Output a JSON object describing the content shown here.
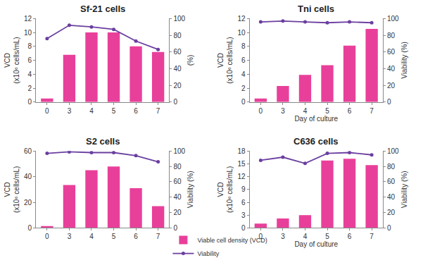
{
  "chart_data": [
    {
      "type": "bar",
      "title": "Sf-21 cells",
      "categories": [
        "0",
        "3",
        "4",
        "5",
        "6",
        "7"
      ],
      "y_label": "VCD\n(x10⁶ cells/mL)",
      "y2_label": "(%)",
      "ylim": [
        0,
        12
      ],
      "yticks": [
        0,
        2,
        4,
        6,
        8,
        10,
        12
      ],
      "y2lim": [
        0,
        100
      ],
      "y2ticks": [
        0,
        20,
        40,
        60,
        80,
        100
      ],
      "grid": false,
      "legend": "bottom",
      "series": [
        {
          "name": "Viable cell density (VCD)",
          "type": "bar",
          "color": "#e8409a",
          "values": [
            0.5,
            6.8,
            10,
            10,
            8,
            7.2
          ]
        },
        {
          "name": "Viability",
          "type": "line",
          "axis": "y2",
          "color": "#6b3fa0",
          "marker": "circle",
          "values": [
            76,
            92,
            90,
            87,
            73,
            63
          ]
        }
      ]
    },
    {
      "type": "bar",
      "title": "Tni cells",
      "categories": [
        "0",
        "3",
        "4",
        "5",
        "6",
        "7"
      ],
      "x_label": "Day of culture",
      "y_label": "VCD\n(x10⁶ cells/mL)",
      "y2_label": "Viability (%)",
      "ylim": [
        0,
        12
      ],
      "yticks": [
        0,
        2,
        4,
        6,
        8,
        10,
        12
      ],
      "y2lim": [
        0,
        100
      ],
      "y2ticks": [
        0,
        20,
        40,
        60,
        80,
        100
      ],
      "grid": false,
      "series": [
        {
          "name": "Viable cell density (VCD)",
          "type": "bar",
          "color": "#e8409a",
          "values": [
            0.5,
            2.3,
            3.9,
            5.3,
            8.1,
            10.5
          ]
        },
        {
          "name": "Viability",
          "type": "line",
          "axis": "y2",
          "color": "#6b3fa0",
          "marker": "circle",
          "values": [
            96,
            97,
            96,
            95,
            96,
            95
          ]
        }
      ]
    },
    {
      "type": "bar",
      "title": "S2 cells",
      "categories": [
        "0",
        "3",
        "4",
        "5",
        "6",
        "7"
      ],
      "y_label": "VCD\n(x10⁶ cells/mL)",
      "y2_label": "Viability (%)",
      "ylim": [
        0,
        60
      ],
      "yticks": [
        0,
        20,
        40,
        60
      ],
      "y2lim": [
        0,
        100
      ],
      "y2ticks": [
        0,
        20,
        40,
        60,
        80,
        100
      ],
      "grid": false,
      "series": [
        {
          "name": "Viable cell density (VCD)",
          "type": "bar",
          "color": "#e8409a",
          "values": [
            1.5,
            33.5,
            45,
            48,
            31,
            17
          ]
        },
        {
          "name": "Viability",
          "type": "line",
          "axis": "y2",
          "color": "#6b3fa0",
          "marker": "circle",
          "values": [
            97,
            99,
            98,
            98,
            94,
            86
          ]
        }
      ]
    },
    {
      "type": "bar",
      "title": "C636 cells",
      "categories": [
        "0",
        "3",
        "4",
        "5",
        "6",
        "7"
      ],
      "x_label": "Day of culture",
      "y_label": "VCD\n(x10⁶ cells/mL)",
      "y2_label": "Viability (%)",
      "ylim": [
        0,
        18
      ],
      "yticks": [
        0,
        3,
        6,
        9,
        12,
        15,
        18
      ],
      "y2lim": [
        0,
        100
      ],
      "y2ticks": [
        0,
        20,
        40,
        60,
        80,
        100
      ],
      "grid": false,
      "series": [
        {
          "name": "Viable cell density (VCD)",
          "type": "bar",
          "color": "#e8409a",
          "values": [
            1.0,
            2.2,
            3.0,
            15.8,
            16.2,
            14.7
          ]
        },
        {
          "name": "Viability",
          "type": "line",
          "axis": "y2",
          "color": "#6b3fa0",
          "marker": "circle",
          "values": [
            88,
            92,
            84,
            97,
            98,
            95
          ]
        }
      ]
    }
  ]
}
